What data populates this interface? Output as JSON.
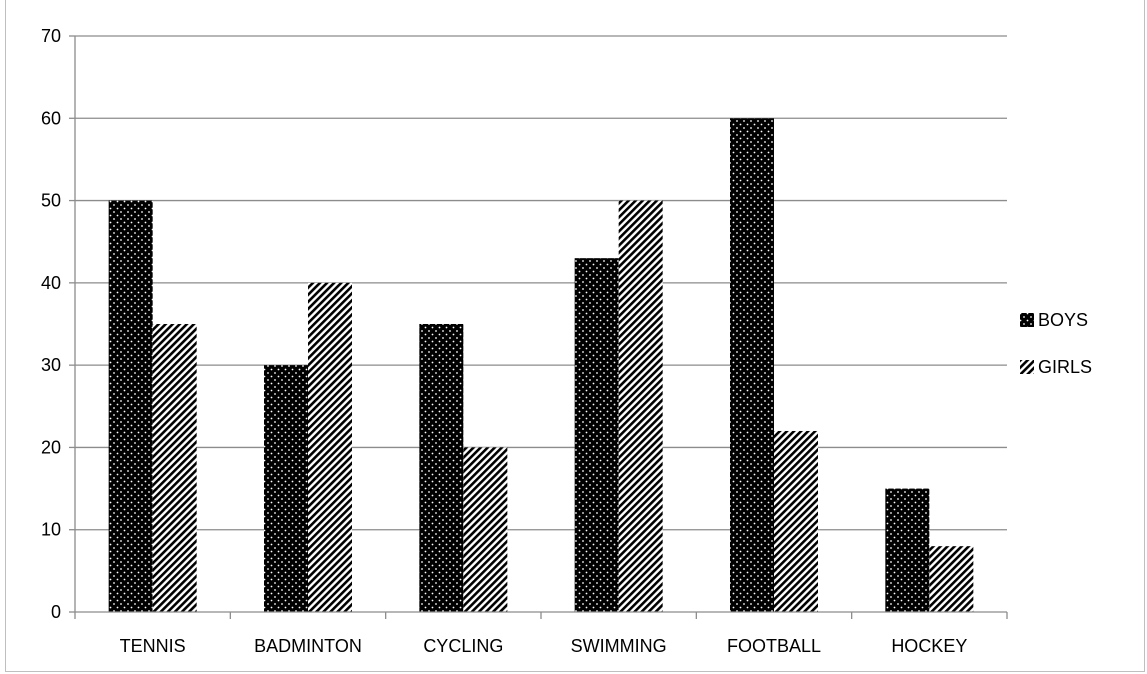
{
  "chart_data": {
    "type": "bar",
    "categories": [
      "TENNIS",
      "BADMINTON",
      "CYCLING",
      "SWIMMING",
      "FOOTBALL",
      "HOCKEY"
    ],
    "series": [
      {
        "name": "BOYS",
        "values": [
          50,
          30,
          35,
          43,
          60,
          15
        ],
        "pattern": "dotted",
        "color": "#000000"
      },
      {
        "name": "GIRLS",
        "values": [
          35,
          40,
          20,
          50,
          22,
          8
        ],
        "pattern": "diagonal-hatch",
        "color": "#000000"
      }
    ],
    "yticks": [
      "0",
      "10",
      "20",
      "30",
      "40",
      "50",
      "60",
      "70"
    ],
    "ylim": [
      0,
      70
    ],
    "grid": true,
    "legend_position": "right"
  }
}
